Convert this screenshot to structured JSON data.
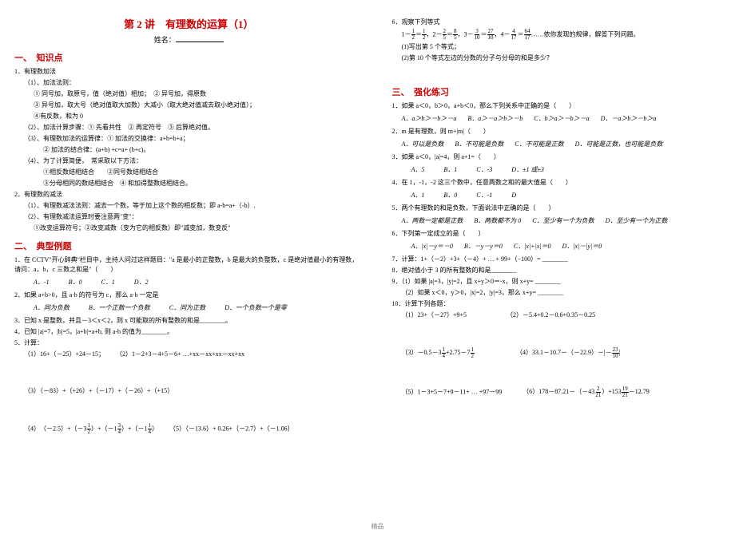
{
  "title": "第 2 讲　有理数的运算（1）",
  "name_label": "姓名：",
  "sec1": "一、　知识点",
  "k1": "1．有理数加法",
  "k1_1": "（1）、加法法则：",
  "k1_1a": "① 同号加，取原号，值（绝对值）相加；　② 异号加，得原数",
  "k1_1b": "③ 异号加，取大号（绝对值取大加数）大减小（取大绝对值减去取小绝对值）；",
  "k1_1c": "④有反数，和为 0",
  "k1_2": "（2）、加法计算步骤：① 先看共性　② 再定符号　③ 后算绝对值。",
  "k1_3": "（3）、有理数加法的运算律：① 加法的交换律：a+b=b+a；",
  "k1_3b": "② 加法的结合律：(a+b) +c=a+ (b+c)。",
  "k1_4": "（4）、为了计算简便，　常采取以下方法：",
  "k1_4a": "①相反数结相结合　　②同号数结相结合",
  "k1_4b": "③分母相同的数结相结合　④ 和加得整数结相结合。",
  "k2": "2．有理数的减法",
  "k2_1": "（1）、有理数减法法则：减去一个数，等于加上这个数的相反数；即 a-b=a+（-b）.",
  "k2_2": "（2）、有理数减法运算时要注意两\"变\"：",
  "k2_2a": "①改变运算符号；②改变减数（变为它的相反数）即\"减变加，数变反\"",
  "sec2": "二、　典型例题",
  "e1": "1．在 CCTV\"开心辞典\"栏目中，主持人问过这样题目：\"a 是最小的正整数，b 是最大的负整数，c 是绝对值最小的有理数，请问：a，b，c 三数之和是\"（　　）",
  "e1_opts": {
    "A": "A．-1",
    "B": "B．0",
    "C": "C．1",
    "D": "D．2"
  },
  "e2": "2．如果 a+b>0，且 a·b 的符号为 c，那么 a·b 一定是",
  "e2_opts": {
    "A": "A．同为负数",
    "B": "B．一个正数一个负数",
    "C": "C．同为正数",
    "D": "D．一个负数一个是零"
  },
  "e3": "3．已知 x 是整数，并且－3＜x＜2，则 x 可能取的所有整数的和是________。",
  "e4": "4．已知 |a|=7，|b|=5，|a+b|=a+b, 则 a-b 的值为________。",
  "e5": "5．计算：",
  "e5_1": "（1）16+（－25）+24－15；",
  "e5_2": "（2）1－2+3－4+5－6+ …+xx－xx+xx－xx+xx",
  "e5_3": "（3）（－83）+（+26）+（－17）+（－26）+（+15）",
  "e5_4l": "（4）　（－2.5）+（－3 ）+（－1 ）+（－1 ）",
  "e5_4r": "（5）（－13.6）+ 0.26+（－2.7）+（－1.06）",
  "e6": "6．观察下列等式",
  "e6_row": "1－ ＝ ，2－ ＝ ，3－ ＝ ，4－ ＝ ……依你发现的规律，解答下列问题。",
  "e6_q1": "(1)写出第 5 个等式；",
  "e6_q2": "(2)第 10 个等式左边的分数的分子与分母的和是多少？",
  "sec3": "三、　强化练习",
  "p1": "1．如果 a＜0，b＞0，a+b＜0，那么下列关系中正确的是（　　）",
  "p1_opts": {
    "A": "A．a＞b＞－b＞－a",
    "B": "B．a＞－a＞b＞－b",
    "C": "C．b＞a＞－b＞－a",
    "D": "D．－a＞b＞－b＞a"
  },
  "p2": "2．m 是有理数，则 m+|m|（　　）",
  "p2_opts": {
    "A": "A．可以是负数",
    "B": "B．不可能是负数",
    "C": "C．不可能是正数",
    "D": "D．可能是正数，也可能是负数"
  },
  "p3": "3．如果 a＜0，|a|=4，则 a+1=（　　）",
  "p3_opts": {
    "A": "A．5",
    "B": "B．1",
    "C": "C．-3",
    "D": "D．±1 或±3"
  },
  "p4": "4．在 1，-1，-2 这三个数中，任意两数之和的最大值是（　　）",
  "p4_opts": {
    "A": "A．1",
    "B": "B．0",
    "C": "C．-1",
    "D": "D"
  },
  "p5": "5．两个有理数的和是负数，下面说法中正确的是（　　）",
  "p5_opts": {
    "A": "A．两数一定都是正数",
    "B": "B．两数都不为 0",
    "C": "C．至少有一个为负数",
    "D": "D．至少有一个为正数"
  },
  "p6": "6．下列第一定成立的是（　　）",
  "p6_opts": {
    "A": "A．|x|－y＝－0",
    "B": "B．－y－y＝0",
    "C": "C．|x|+|x|＝0",
    "D": "D．|x|－|y|＝0"
  },
  "p7": "7．计算：1+（－2）+3+（－4）+ … + 99+（−100）= ________",
  "p8": "8．绝对值小于 3 的所有整数的和是________",
  "p9_1": "9．（1）如果 |a|=3，|y|=2，且 x+y＞0＝-x，则 x+y= ________",
  "p9_2": "　　（2）如果 x＜0，y＞0，|x|=2，|y|=3，那么 x+y= ________",
  "p10": "10．计算下列各题：",
  "p10_1": "（1）23+（－27）+9+5",
  "p10_2": "（2）－5.4+0.2－0.6+0.35－0.25",
  "p10_3": "（3）－0.5－3 +2.75－7 ",
  "p10_4": "（4）33.1－10.7－（－22.9）－|－ |",
  "p10_5": "（5）1－3+5－7+9－11+ … +97－99",
  "p10_6": "（6）178－87.21－（－43 ）+153 －12.79",
  "footer": "精品",
  "fracs": {
    "half": {
      "n": "1",
      "d": "2"
    },
    "oneHalfR": {
      "n": "1",
      "d": "2"
    },
    "two5": {
      "n": "2",
      "d": "5"
    },
    "eight5": {
      "n": "8",
      "d": "5"
    },
    "three10": {
      "n": "3",
      "d": "10"
    },
    "tw710": {
      "n": "27",
      "d": "10"
    },
    "four17": {
      "n": "4",
      "d": "17"
    },
    "s417": {
      "n": "64",
      "d": "17"
    },
    "oneQ": {
      "n": "1",
      "d": "4"
    },
    "threeQ": {
      "n": "3",
      "d": "4"
    },
    "oneHalf2": {
      "n": "1",
      "d": "2"
    },
    "oneQ2": {
      "n": "1",
      "d": "4"
    },
    "tw310": {
      "n": "23",
      "d": "10"
    },
    "two21": {
      "n": "2",
      "d": "21"
    },
    "nt21": {
      "n": "19",
      "d": "21"
    }
  }
}
